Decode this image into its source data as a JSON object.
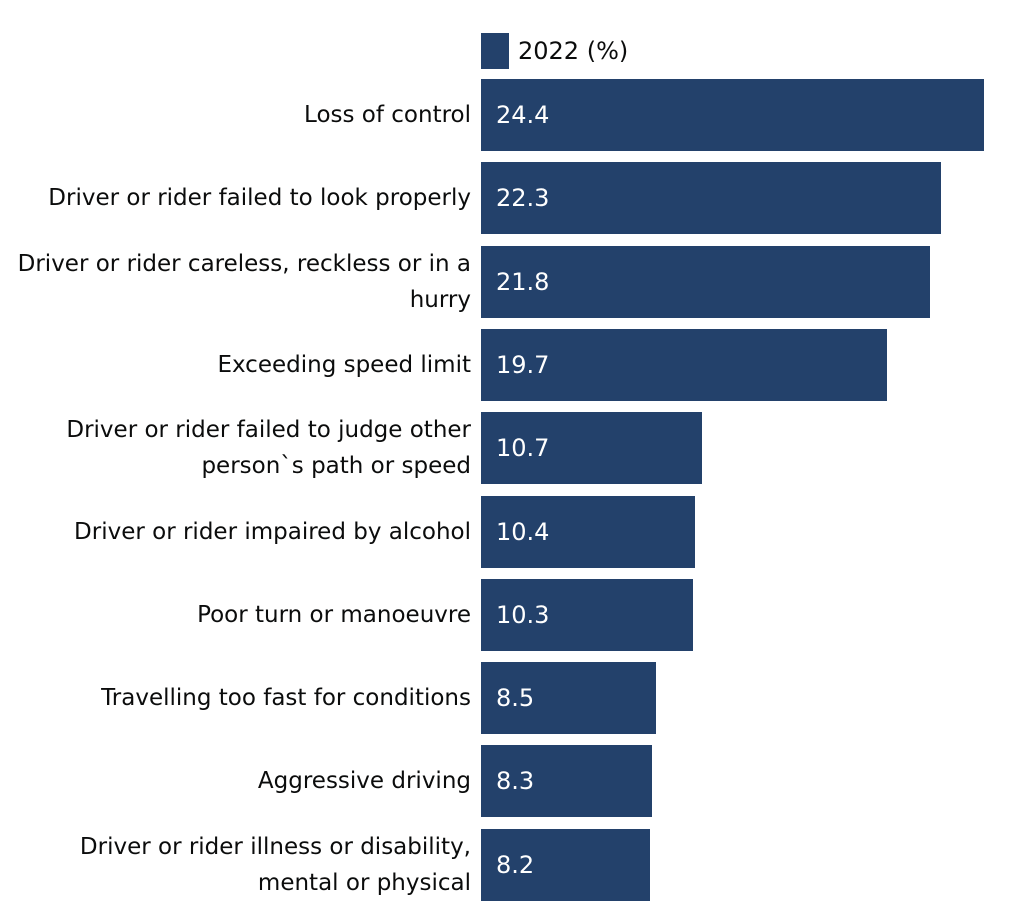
{
  "chart_data": {
    "type": "bar",
    "orientation": "horizontal",
    "categories": [
      "Loss of control",
      "Driver or rider failed to look properly",
      "Driver or rider careless, reckless or in a hurry",
      "Exceeding speed limit",
      "Driver or rider failed to judge other person`s path or speed",
      "Driver or rider impaired by alcohol",
      "Poor turn or manoeuvre",
      "Travelling too fast for conditions",
      "Aggressive driving",
      "Driver or rider illness or disability, mental or physical"
    ],
    "series": [
      {
        "name": "2022 (%)",
        "values": [
          24.4,
          22.3,
          21.8,
          19.7,
          10.7,
          10.4,
          10.3,
          8.5,
          8.3,
          8.2
        ],
        "color": "#23416b"
      }
    ],
    "data_labels": [
      "24.4",
      "22.3",
      "21.8",
      "19.7",
      "10.7",
      "10.4",
      "10.3",
      "8.5",
      "8.3",
      "8.2"
    ],
    "legend_position": "top",
    "grid": false,
    "xlim": [
      0,
      24.4
    ]
  }
}
